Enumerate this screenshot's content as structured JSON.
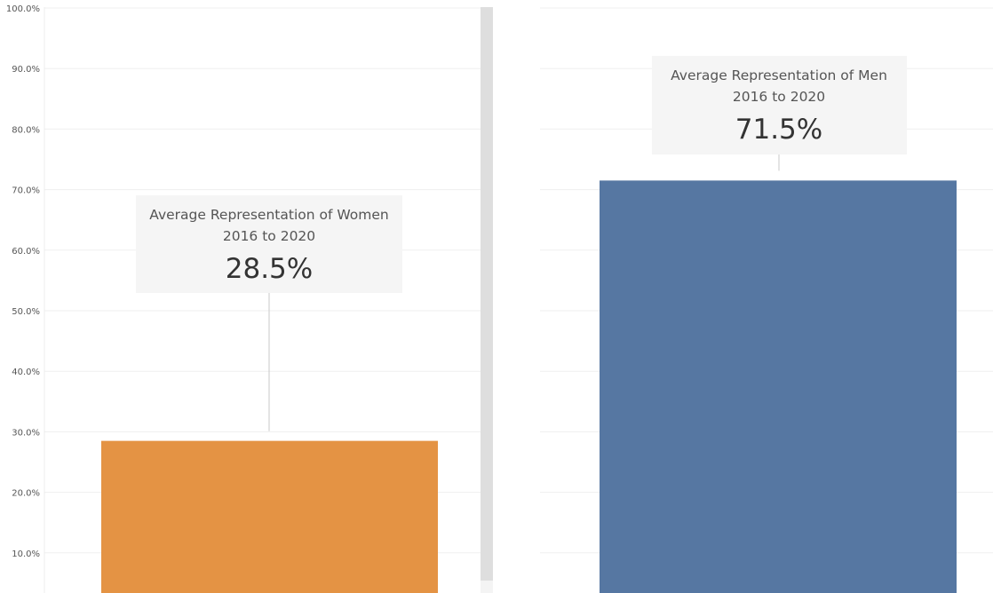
{
  "chart_data": {
    "type": "bar",
    "y_axis": {
      "ylim": [
        0,
        100
      ],
      "tick_labels": [
        "10.0%",
        "20.0%",
        "30.0%",
        "40.0%",
        "50.0%",
        "60.0%",
        "70.0%",
        "80.0%",
        "90.0%",
        "100.0%"
      ],
      "tick_values": [
        10,
        20,
        30,
        40,
        50,
        60,
        70,
        80,
        90,
        100
      ]
    },
    "grid": true,
    "panels": [
      {
        "category": "Women",
        "value": 28.5,
        "color": "#E49344",
        "annotation": {
          "title_line1": "Average Representation of Women",
          "title_line2": "2016 to 2020",
          "value_label": "28.5%"
        }
      },
      {
        "category": "Men",
        "value": 71.5,
        "color": "#5677A2",
        "annotation": {
          "title_line1": "Average Representation of Men",
          "title_line2": "2016 to 2020",
          "value_label": "71.5%"
        }
      }
    ]
  }
}
